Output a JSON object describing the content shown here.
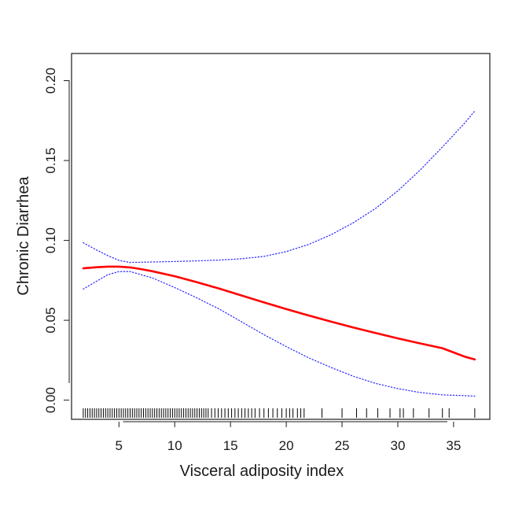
{
  "chart_data": {
    "type": "line",
    "title": "",
    "xlabel": "Visceral adiposity index",
    "ylabel": "Chronic Diarrhea",
    "xlim": [
      0.75,
      38.25
    ],
    "ylim": [
      -0.012,
      0.217
    ],
    "xticks": [
      5,
      10,
      15,
      20,
      25,
      30,
      35
    ],
    "xtick_labels": [
      "5",
      "10",
      "15",
      "20",
      "25",
      "30",
      "35"
    ],
    "yticks": [
      0.0,
      0.05,
      0.1,
      0.15,
      0.2
    ],
    "ytick_labels": [
      "0.00",
      "0.05",
      "0.10",
      "0.15",
      "0.20"
    ],
    "grid": false,
    "legend": "none",
    "series": [
      {
        "role": "fit",
        "color": "#ff0000",
        "style": "solid",
        "x": [
          1.8,
          3,
          4,
          5,
          6,
          7,
          8,
          10,
          12,
          14,
          16,
          18,
          20,
          22,
          24,
          26,
          28,
          30,
          32,
          34,
          36,
          36.9
        ],
        "y": [
          0.0825,
          0.0832,
          0.0836,
          0.0836,
          0.0831,
          0.082,
          0.0807,
          0.0776,
          0.0738,
          0.0698,
          0.0655,
          0.0612,
          0.057,
          0.053,
          0.0492,
          0.0455,
          0.042,
          0.0387,
          0.0355,
          0.0325,
          0.0272,
          0.0255
        ]
      },
      {
        "role": "upper-ci",
        "color": "#3333ff",
        "style": "dotted",
        "x": [
          1.8,
          3,
          4,
          5,
          6,
          8,
          10,
          12,
          14,
          16,
          18,
          20,
          22,
          24,
          26,
          28,
          30,
          32,
          34,
          36,
          36.9
        ],
        "y": [
          0.0985,
          0.094,
          0.0905,
          0.0875,
          0.0862,
          0.0865,
          0.0868,
          0.0872,
          0.0877,
          0.0885,
          0.09,
          0.093,
          0.0975,
          0.1035,
          0.111,
          0.12,
          0.131,
          0.144,
          0.1585,
          0.1735,
          0.181
        ]
      },
      {
        "role": "lower-ci",
        "color": "#3333ff",
        "style": "dotted",
        "x": [
          1.8,
          3,
          4,
          5,
          6,
          8,
          10,
          12,
          14,
          16,
          18,
          20,
          22,
          24,
          26,
          28,
          30,
          32,
          34,
          36,
          36.9
        ],
        "y": [
          0.0695,
          0.0745,
          0.0785,
          0.0805,
          0.0805,
          0.0765,
          0.0705,
          0.064,
          0.057,
          0.049,
          0.041,
          0.0335,
          0.0265,
          0.0205,
          0.015,
          0.0105,
          0.0072,
          0.0048,
          0.0033,
          0.0028,
          0.0025
        ]
      }
    ],
    "rug": {
      "color": "#000000",
      "x": [
        1.8,
        2,
        2.2,
        2.4,
        2.6,
        2.8,
        3,
        3.2,
        3.4,
        3.6,
        3.8,
        4,
        4.2,
        4.4,
        4.6,
        4.8,
        5,
        5.2,
        5.4,
        5.6,
        5.8,
        6,
        6.2,
        6.4,
        6.6,
        6.8,
        7,
        7.2,
        7.4,
        7.6,
        7.8,
        8,
        8.2,
        8.4,
        8.6,
        8.8,
        9,
        9.2,
        9.4,
        9.6,
        9.8,
        10,
        10.2,
        10.4,
        10.6,
        10.8,
        11,
        11.2,
        11.4,
        11.6,
        11.8,
        12,
        12.2,
        12.4,
        12.6,
        12.8,
        13,
        13.3,
        13.6,
        13.9,
        14.2,
        14.5,
        14.8,
        15.1,
        15.4,
        15.7,
        16,
        16.3,
        16.6,
        16.9,
        17.2,
        17.6,
        18,
        18.4,
        18.8,
        19.2,
        19.6,
        20,
        20.3,
        20.6,
        21,
        21.3,
        21.6,
        23.2,
        25,
        26.3,
        27.2,
        28.2,
        29.3,
        30.2,
        30.5,
        31.4,
        32.8,
        34,
        34.6,
        36.9
      ]
    }
  }
}
